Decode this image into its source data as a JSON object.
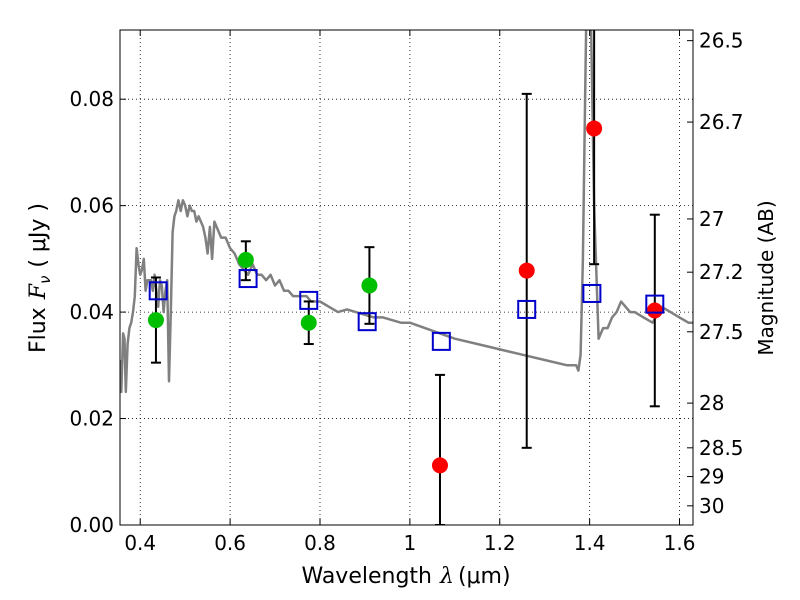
{
  "chart_data": {
    "type": "scatter",
    "xlabel": "Wavelength",
    "xlabel_symbol": "λ",
    "xlabel_unit": "(μm)",
    "ylabel": "Flux",
    "ylabel_symbol": "F",
    "ylabel_subscript": "ν",
    "ylabel_unit": "( μJy )",
    "y2label": "Magnitude (AB)",
    "xlim": [
      0.355,
      1.63
    ],
    "ylim": [
      0.0,
      0.093
    ],
    "grid": true,
    "x_ticks": [
      0.4,
      0.6,
      0.8,
      1.0,
      1.2,
      1.4,
      1.6
    ],
    "x_tick_labels": [
      "0.4",
      "0.6",
      "0.8",
      "1",
      "1.2",
      "1.4",
      "1.6"
    ],
    "y_ticks": [
      0.0,
      0.02,
      0.04,
      0.06,
      0.08
    ],
    "y_tick_labels": [
      "0.00",
      "0.02",
      "0.04",
      "0.06",
      "0.08"
    ],
    "y2_ticks": [
      {
        "flux": 0.091,
        "label": "26.5"
      },
      {
        "flux": 0.0757,
        "label": "26.7"
      },
      {
        "flux": 0.0575,
        "label": "27"
      },
      {
        "flux": 0.0475,
        "label": "27.2"
      },
      {
        "flux": 0.0363,
        "label": "27.5"
      },
      {
        "flux": 0.0229,
        "label": "28"
      },
      {
        "flux": 0.0145,
        "label": "28.5"
      },
      {
        "flux": 0.0091,
        "label": "29"
      },
      {
        "flux": 0.0036,
        "label": "30"
      }
    ],
    "series": [
      {
        "marker": "line",
        "color": "#808080",
        "x": [
          0.355,
          0.358,
          0.362,
          0.365,
          0.368,
          0.372,
          0.376,
          0.38,
          0.384,
          0.388,
          0.392,
          0.396,
          0.4,
          0.404,
          0.408,
          0.412,
          0.416,
          0.42,
          0.424,
          0.428,
          0.432,
          0.436,
          0.44,
          0.444,
          0.448,
          0.452,
          0.456,
          0.46,
          0.464,
          0.468,
          0.472,
          0.476,
          0.48,
          0.485,
          0.49,
          0.495,
          0.5,
          0.505,
          0.51,
          0.515,
          0.52,
          0.525,
          0.53,
          0.535,
          0.54,
          0.545,
          0.55,
          0.555,
          0.56,
          0.565,
          0.57,
          0.575,
          0.58,
          0.59,
          0.6,
          0.61,
          0.62,
          0.63,
          0.64,
          0.65,
          0.66,
          0.67,
          0.68,
          0.69,
          0.7,
          0.71,
          0.72,
          0.73,
          0.74,
          0.75,
          0.76,
          0.77,
          0.78,
          0.79,
          0.8,
          0.82,
          0.84,
          0.86,
          0.88,
          0.9,
          0.92,
          0.94,
          0.96,
          0.98,
          1.0,
          1.05,
          1.1,
          1.15,
          1.2,
          1.25,
          1.3,
          1.35,
          1.37,
          1.375,
          1.38,
          1.385,
          1.39,
          1.395,
          1.4,
          1.41,
          1.42,
          1.43,
          1.44,
          1.45,
          1.46,
          1.47,
          1.48,
          1.49,
          1.5,
          1.52,
          1.54,
          1.56,
          1.58,
          1.6,
          1.62,
          1.63
        ],
        "values": [
          0.031,
          0.025,
          0.036,
          0.035,
          0.025,
          0.034,
          0.037,
          0.038,
          0.04,
          0.043,
          0.052,
          0.049,
          0.047,
          0.048,
          0.05,
          0.044,
          0.046,
          0.046,
          0.046,
          0.044,
          0.047,
          0.044,
          0.041,
          0.046,
          0.045,
          0.04,
          0.044,
          0.046,
          0.027,
          0.04,
          0.055,
          0.058,
          0.059,
          0.061,
          0.059,
          0.061,
          0.06,
          0.058,
          0.06,
          0.059,
          0.059,
          0.057,
          0.058,
          0.057,
          0.056,
          0.054,
          0.051,
          0.056,
          0.05,
          0.057,
          0.056,
          0.055,
          0.054,
          0.054,
          0.052,
          0.051,
          0.049,
          0.048,
          0.047,
          0.049,
          0.047,
          0.047,
          0.046,
          0.047,
          0.045,
          0.046,
          0.044,
          0.044,
          0.043,
          0.043,
          0.043,
          0.043,
          0.042,
          0.042,
          0.042,
          0.041,
          0.04,
          0.0405,
          0.04,
          0.0395,
          0.039,
          0.039,
          0.0385,
          0.038,
          0.038,
          0.0365,
          0.035,
          0.034,
          0.033,
          0.032,
          0.031,
          0.03,
          0.03,
          0.029,
          0.032,
          0.05,
          0.08,
          0.11,
          0.11,
          0.06,
          0.035,
          0.037,
          0.037,
          0.039,
          0.04,
          0.042,
          0.041,
          0.04,
          0.04,
          0.039,
          0.038,
          0.041,
          0.04,
          0.039,
          0.038,
          0.038
        ]
      },
      {
        "marker": "circle",
        "color": "#00bf00",
        "points": [
          {
            "x": 0.435,
            "y": 0.0385,
            "ylo": 0.0305,
            "yhi": 0.0465
          },
          {
            "x": 0.635,
            "y": 0.0498,
            "ylo": 0.046,
            "yhi": 0.0533
          },
          {
            "x": 0.775,
            "y": 0.038,
            "ylo": 0.034,
            "yhi": 0.042
          },
          {
            "x": 0.91,
            "y": 0.045,
            "ylo": 0.0378,
            "yhi": 0.0522
          }
        ]
      },
      {
        "marker": "circle",
        "color": "#ff0000",
        "points": [
          {
            "x": 1.067,
            "y": 0.0112,
            "ylo": 0.0,
            "yhi": 0.0282
          },
          {
            "x": 1.26,
            "y": 0.0478,
            "ylo": 0.0145,
            "yhi": 0.081
          },
          {
            "x": 1.41,
            "y": 0.0745,
            "ylo": 0.049,
            "yhi": 0.099
          },
          {
            "x": 1.545,
            "y": 0.0403,
            "ylo": 0.0223,
            "yhi": 0.0583
          }
        ]
      },
      {
        "marker": "square-open",
        "color": "#0000cc",
        "points": [
          {
            "x": 0.44,
            "y": 0.044
          },
          {
            "x": 0.64,
            "y": 0.0463
          },
          {
            "x": 0.775,
            "y": 0.0422
          },
          {
            "x": 0.905,
            "y": 0.0382
          },
          {
            "x": 1.07,
            "y": 0.0345
          },
          {
            "x": 1.26,
            "y": 0.0405
          },
          {
            "x": 1.405,
            "y": 0.0435
          },
          {
            "x": 1.545,
            "y": 0.0415
          }
        ]
      }
    ]
  }
}
